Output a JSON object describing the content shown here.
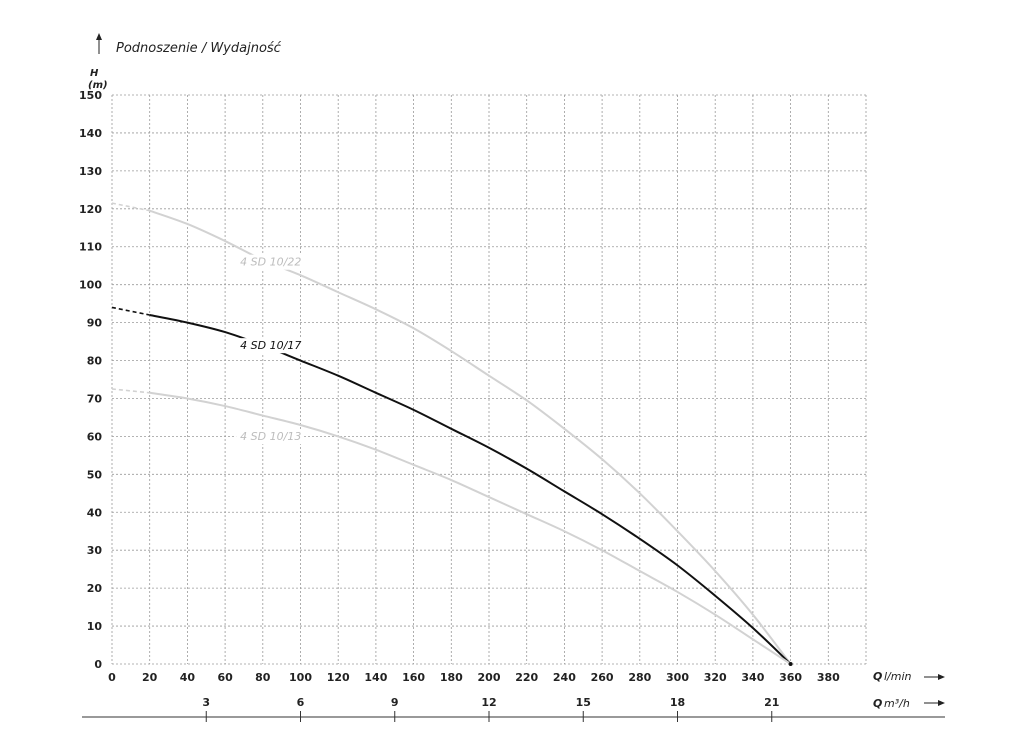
{
  "chart_data": {
    "type": "line",
    "title": "Podnoszenie / Wydajność",
    "y_label": "H",
    "y_unit": "(m)",
    "x_label_symbol": "Q",
    "x_unit": "l/min",
    "x2_label_symbol": "Q",
    "x2_unit": "m³/h",
    "xlim": [
      0,
      400
    ],
    "ylim": [
      0,
      150
    ],
    "x_ticks": [
      0,
      20,
      40,
      60,
      80,
      100,
      120,
      140,
      160,
      180,
      200,
      220,
      240,
      260,
      280,
      300,
      320,
      340,
      360,
      380
    ],
    "y_ticks": [
      0,
      10,
      20,
      30,
      40,
      50,
      60,
      70,
      80,
      90,
      100,
      110,
      120,
      130,
      140,
      150
    ],
    "x2_ticks": [
      {
        "label": "3",
        "q_lmin": 50
      },
      {
        "label": "6",
        "q_lmin": 100
      },
      {
        "label": "9",
        "q_lmin": 150
      },
      {
        "label": "12",
        "q_lmin": 200
      },
      {
        "label": "15",
        "q_lmin": 250
      },
      {
        "label": "18",
        "q_lmin": 300
      },
      {
        "label": "21",
        "q_lmin": 350
      }
    ],
    "grid": true,
    "series": [
      {
        "name": "4 SD 10/22",
        "color": "#d2d2d2",
        "label_at": [
          68,
          105
        ],
        "values": [
          [
            0,
            121.5
          ],
          [
            20,
            119.5
          ],
          [
            40,
            116
          ],
          [
            60,
            111.5
          ],
          [
            80,
            106.5
          ],
          [
            100,
            102.5
          ],
          [
            120,
            98
          ],
          [
            140,
            93.5
          ],
          [
            160,
            88.5
          ],
          [
            180,
            82.5
          ],
          [
            200,
            76
          ],
          [
            220,
            69.5
          ],
          [
            240,
            62
          ],
          [
            260,
            54
          ],
          [
            280,
            45
          ],
          [
            300,
            35
          ],
          [
            320,
            24.5
          ],
          [
            340,
            13
          ],
          [
            360,
            0
          ]
        ]
      },
      {
        "name": "4 SD 10/17",
        "color": "#111111",
        "label_at": [
          68,
          83
        ],
        "values": [
          [
            0,
            94
          ],
          [
            20,
            92
          ],
          [
            40,
            90
          ],
          [
            60,
            87.5
          ],
          [
            80,
            84
          ],
          [
            100,
            80
          ],
          [
            120,
            76
          ],
          [
            140,
            71.5
          ],
          [
            160,
            67
          ],
          [
            180,
            62
          ],
          [
            200,
            57
          ],
          [
            220,
            51.5
          ],
          [
            240,
            45.5
          ],
          [
            260,
            39.5
          ],
          [
            280,
            33
          ],
          [
            300,
            26
          ],
          [
            320,
            18
          ],
          [
            340,
            9.5
          ],
          [
            360,
            0
          ]
        ]
      },
      {
        "name": "4 SD 10/13",
        "color": "#d2d2d2",
        "label_at": [
          68,
          59
        ],
        "values": [
          [
            0,
            72.5
          ],
          [
            20,
            71.5
          ],
          [
            40,
            70
          ],
          [
            60,
            68
          ],
          [
            80,
            65.5
          ],
          [
            100,
            63
          ],
          [
            120,
            60
          ],
          [
            140,
            56.5
          ],
          [
            160,
            52.5
          ],
          [
            180,
            48.5
          ],
          [
            200,
            44
          ],
          [
            220,
            39.5
          ],
          [
            240,
            35
          ],
          [
            260,
            30
          ],
          [
            280,
            24.5
          ],
          [
            300,
            19
          ],
          [
            320,
            13
          ],
          [
            340,
            6.5
          ],
          [
            360,
            0
          ]
        ]
      }
    ]
  }
}
